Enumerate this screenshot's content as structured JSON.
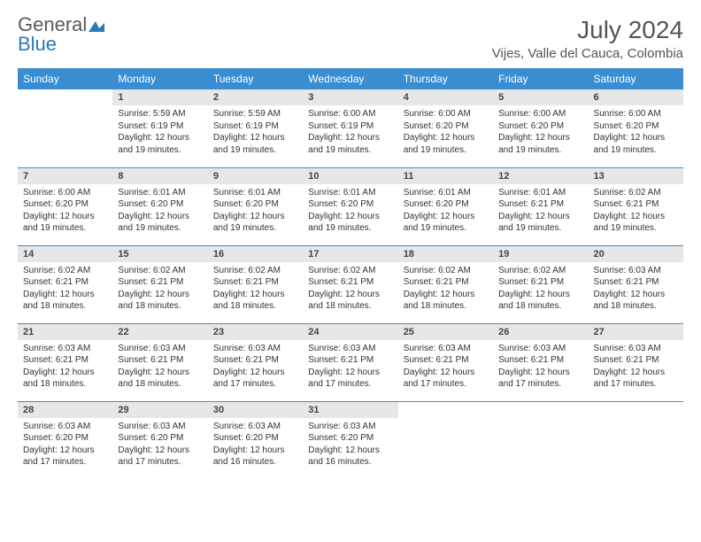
{
  "brand": {
    "text_gray": "General",
    "text_blue": "Blue"
  },
  "title": "July 2024",
  "location": "Vijes, Valle del Cauca, Colombia",
  "colors": {
    "header_bg": "#3a8dd0",
    "header_text": "#ffffff",
    "daynum_bg": "#e7e7e7",
    "row_divider": "#3a8dd0",
    "brand_gray": "#5a5a5a",
    "brand_blue": "#2a7ab8"
  },
  "daynames": [
    "Sunday",
    "Monday",
    "Tuesday",
    "Wednesday",
    "Thursday",
    "Friday",
    "Saturday"
  ],
  "weeks": [
    [
      null,
      {
        "n": "1",
        "sr": "5:59 AM",
        "ss": "6:19 PM",
        "dl": "12 hours and 19 minutes."
      },
      {
        "n": "2",
        "sr": "5:59 AM",
        "ss": "6:19 PM",
        "dl": "12 hours and 19 minutes."
      },
      {
        "n": "3",
        "sr": "6:00 AM",
        "ss": "6:19 PM",
        "dl": "12 hours and 19 minutes."
      },
      {
        "n": "4",
        "sr": "6:00 AM",
        "ss": "6:20 PM",
        "dl": "12 hours and 19 minutes."
      },
      {
        "n": "5",
        "sr": "6:00 AM",
        "ss": "6:20 PM",
        "dl": "12 hours and 19 minutes."
      },
      {
        "n": "6",
        "sr": "6:00 AM",
        "ss": "6:20 PM",
        "dl": "12 hours and 19 minutes."
      }
    ],
    [
      {
        "n": "7",
        "sr": "6:00 AM",
        "ss": "6:20 PM",
        "dl": "12 hours and 19 minutes."
      },
      {
        "n": "8",
        "sr": "6:01 AM",
        "ss": "6:20 PM",
        "dl": "12 hours and 19 minutes."
      },
      {
        "n": "9",
        "sr": "6:01 AM",
        "ss": "6:20 PM",
        "dl": "12 hours and 19 minutes."
      },
      {
        "n": "10",
        "sr": "6:01 AM",
        "ss": "6:20 PM",
        "dl": "12 hours and 19 minutes."
      },
      {
        "n": "11",
        "sr": "6:01 AM",
        "ss": "6:20 PM",
        "dl": "12 hours and 19 minutes."
      },
      {
        "n": "12",
        "sr": "6:01 AM",
        "ss": "6:21 PM",
        "dl": "12 hours and 19 minutes."
      },
      {
        "n": "13",
        "sr": "6:02 AM",
        "ss": "6:21 PM",
        "dl": "12 hours and 19 minutes."
      }
    ],
    [
      {
        "n": "14",
        "sr": "6:02 AM",
        "ss": "6:21 PM",
        "dl": "12 hours and 18 minutes."
      },
      {
        "n": "15",
        "sr": "6:02 AM",
        "ss": "6:21 PM",
        "dl": "12 hours and 18 minutes."
      },
      {
        "n": "16",
        "sr": "6:02 AM",
        "ss": "6:21 PM",
        "dl": "12 hours and 18 minutes."
      },
      {
        "n": "17",
        "sr": "6:02 AM",
        "ss": "6:21 PM",
        "dl": "12 hours and 18 minutes."
      },
      {
        "n": "18",
        "sr": "6:02 AM",
        "ss": "6:21 PM",
        "dl": "12 hours and 18 minutes."
      },
      {
        "n": "19",
        "sr": "6:02 AM",
        "ss": "6:21 PM",
        "dl": "12 hours and 18 minutes."
      },
      {
        "n": "20",
        "sr": "6:03 AM",
        "ss": "6:21 PM",
        "dl": "12 hours and 18 minutes."
      }
    ],
    [
      {
        "n": "21",
        "sr": "6:03 AM",
        "ss": "6:21 PM",
        "dl": "12 hours and 18 minutes."
      },
      {
        "n": "22",
        "sr": "6:03 AM",
        "ss": "6:21 PM",
        "dl": "12 hours and 18 minutes."
      },
      {
        "n": "23",
        "sr": "6:03 AM",
        "ss": "6:21 PM",
        "dl": "12 hours and 17 minutes."
      },
      {
        "n": "24",
        "sr": "6:03 AM",
        "ss": "6:21 PM",
        "dl": "12 hours and 17 minutes."
      },
      {
        "n": "25",
        "sr": "6:03 AM",
        "ss": "6:21 PM",
        "dl": "12 hours and 17 minutes."
      },
      {
        "n": "26",
        "sr": "6:03 AM",
        "ss": "6:21 PM",
        "dl": "12 hours and 17 minutes."
      },
      {
        "n": "27",
        "sr": "6:03 AM",
        "ss": "6:21 PM",
        "dl": "12 hours and 17 minutes."
      }
    ],
    [
      {
        "n": "28",
        "sr": "6:03 AM",
        "ss": "6:20 PM",
        "dl": "12 hours and 17 minutes."
      },
      {
        "n": "29",
        "sr": "6:03 AM",
        "ss": "6:20 PM",
        "dl": "12 hours and 17 minutes."
      },
      {
        "n": "30",
        "sr": "6:03 AM",
        "ss": "6:20 PM",
        "dl": "12 hours and 16 minutes."
      },
      {
        "n": "31",
        "sr": "6:03 AM",
        "ss": "6:20 PM",
        "dl": "12 hours and 16 minutes."
      },
      null,
      null,
      null
    ]
  ],
  "labels": {
    "sunrise": "Sunrise:",
    "sunset": "Sunset:",
    "daylight": "Daylight:"
  }
}
